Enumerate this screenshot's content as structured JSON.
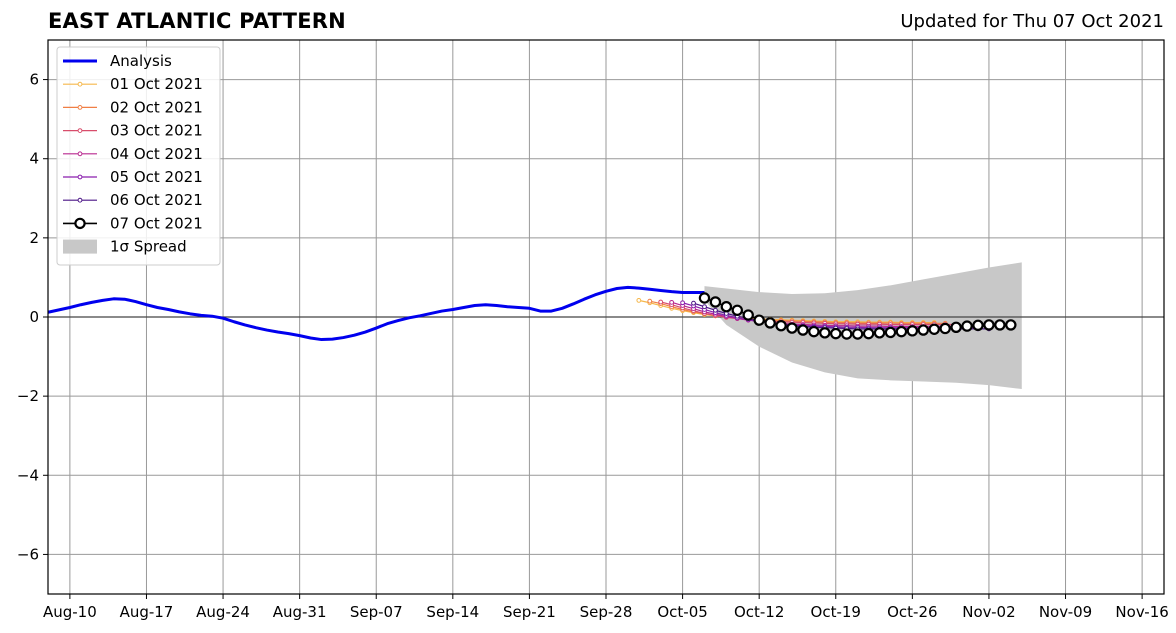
{
  "header": {
    "title": "EAST ATLANTIC PATTERN",
    "updated": "Updated for Thu 07 Oct 2021"
  },
  "colors": {
    "analysis": "#0000ee",
    "spread": "#c8c8c8",
    "grid": "#999999",
    "latest": "#000000"
  },
  "chart_data": {
    "type": "line",
    "title": "EAST ATLANTIC PATTERN",
    "xlabel": "",
    "ylabel": "",
    "ylim": [
      -7,
      7
    ],
    "xlim": [
      "2021-08-08",
      "2021-11-18"
    ],
    "yticks": [
      -6,
      -4,
      -2,
      0,
      2,
      4,
      6
    ],
    "ytick_labels": [
      "−6",
      "−4",
      "−2",
      "0",
      "2",
      "4",
      "6"
    ],
    "xticks": [
      "2021-08-10",
      "2021-08-17",
      "2021-08-24",
      "2021-08-31",
      "2021-09-07",
      "2021-09-14",
      "2021-09-21",
      "2021-09-28",
      "2021-10-05",
      "2021-10-12",
      "2021-10-19",
      "2021-10-26",
      "2021-11-02",
      "2021-11-09",
      "2021-11-16"
    ],
    "xtick_labels": [
      "Aug-10",
      "Aug-17",
      "Aug-24",
      "Aug-31",
      "Sep-07",
      "Sep-14",
      "Sep-21",
      "Sep-28",
      "Oct-05",
      "Oct-12",
      "Oct-19",
      "Oct-26",
      "Nov-02",
      "Nov-09",
      "Nov-16"
    ],
    "grid": true,
    "legend_position": "top-left",
    "analysis": {
      "name": "Analysis",
      "x": [
        "2021-08-08",
        "2021-08-09",
        "2021-08-10",
        "2021-08-11",
        "2021-08-12",
        "2021-08-13",
        "2021-08-14",
        "2021-08-15",
        "2021-08-16",
        "2021-08-17",
        "2021-08-18",
        "2021-08-19",
        "2021-08-20",
        "2021-08-21",
        "2021-08-22",
        "2021-08-23",
        "2021-08-24",
        "2021-08-25",
        "2021-08-26",
        "2021-08-27",
        "2021-08-28",
        "2021-08-29",
        "2021-08-30",
        "2021-08-31",
        "2021-09-01",
        "2021-09-02",
        "2021-09-03",
        "2021-09-04",
        "2021-09-05",
        "2021-09-06",
        "2021-09-07",
        "2021-09-08",
        "2021-09-09",
        "2021-09-10",
        "2021-09-11",
        "2021-09-12",
        "2021-09-13",
        "2021-09-14",
        "2021-09-15",
        "2021-09-16",
        "2021-09-17",
        "2021-09-18",
        "2021-09-19",
        "2021-09-20",
        "2021-09-21",
        "2021-09-22",
        "2021-09-23",
        "2021-09-24",
        "2021-09-25",
        "2021-09-26",
        "2021-09-27",
        "2021-09-28",
        "2021-09-29",
        "2021-09-30",
        "2021-10-01",
        "2021-10-02",
        "2021-10-03",
        "2021-10-04",
        "2021-10-05",
        "2021-10-06",
        "2021-10-07"
      ],
      "y": [
        0.12,
        0.18,
        0.24,
        0.31,
        0.37,
        0.42,
        0.46,
        0.45,
        0.39,
        0.31,
        0.24,
        0.19,
        0.13,
        0.08,
        0.04,
        0.02,
        -0.03,
        -0.12,
        -0.2,
        -0.27,
        -0.33,
        -0.38,
        -0.42,
        -0.47,
        -0.53,
        -0.57,
        -0.56,
        -0.52,
        -0.46,
        -0.38,
        -0.28,
        -0.17,
        -0.09,
        -0.02,
        0.03,
        0.09,
        0.15,
        0.19,
        0.24,
        0.29,
        0.31,
        0.29,
        0.26,
        0.24,
        0.22,
        0.15,
        0.15,
        0.22,
        0.33,
        0.45,
        0.56,
        0.65,
        0.72,
        0.75,
        0.73,
        0.7,
        0.67,
        0.64,
        0.62,
        0.62,
        0.62
      ]
    },
    "spread": {
      "name": "1σ Spread",
      "x": [
        "2021-10-07",
        "2021-10-09",
        "2021-10-12",
        "2021-10-15",
        "2021-10-18",
        "2021-10-21",
        "2021-10-24",
        "2021-10-27",
        "2021-10-30",
        "2021-11-02",
        "2021-11-05"
      ],
      "upper": [
        0.78,
        0.72,
        0.63,
        0.58,
        0.6,
        0.68,
        0.8,
        0.95,
        1.1,
        1.25,
        1.38
      ],
      "lower": [
        0.42,
        -0.2,
        -0.75,
        -1.15,
        -1.4,
        -1.55,
        -1.6,
        -1.63,
        -1.66,
        -1.72,
        -1.82
      ]
    },
    "series": [
      {
        "name": "01 Oct 2021",
        "color": "#f5b74b",
        "start": "2021-10-01",
        "values": [
          0.42,
          0.36,
          0.29,
          0.22,
          0.16,
          0.11,
          0.06,
          0.03,
          0.0,
          -0.02,
          -0.04,
          -0.05,
          -0.06,
          -0.07,
          -0.08,
          -0.09,
          -0.1,
          -0.11,
          -0.12,
          -0.12,
          -0.12,
          -0.13,
          -0.13,
          -0.13,
          -0.14,
          -0.14,
          -0.14,
          -0.14
        ]
      },
      {
        "name": "02 Oct 2021",
        "color": "#f07f45",
        "start": "2021-10-02",
        "values": [
          0.4,
          0.34,
          0.26,
          0.19,
          0.13,
          0.08,
          0.03,
          0.0,
          -0.03,
          -0.05,
          -0.07,
          -0.08,
          -0.09,
          -0.1,
          -0.11,
          -0.12,
          -0.13,
          -0.14,
          -0.14,
          -0.15,
          -0.15,
          -0.15,
          -0.15,
          -0.16,
          -0.16,
          -0.16,
          -0.16,
          -0.16
        ]
      },
      {
        "name": "03 Oct 2021",
        "color": "#d84d6b",
        "start": "2021-10-03",
        "values": [
          0.38,
          0.31,
          0.23,
          0.16,
          0.09,
          0.04,
          -0.01,
          -0.04,
          -0.07,
          -0.09,
          -0.11,
          -0.12,
          -0.13,
          -0.14,
          -0.15,
          -0.16,
          -0.17,
          -0.17,
          -0.18,
          -0.18,
          -0.18,
          -0.19,
          -0.19,
          -0.19,
          -0.19,
          -0.19,
          -0.19,
          -0.19
        ]
      },
      {
        "name": "04 Oct 2021",
        "color": "#b8288f",
        "start": "2021-10-04",
        "values": [
          0.37,
          0.29,
          0.21,
          0.13,
          0.07,
          0.01,
          -0.04,
          -0.08,
          -0.11,
          -0.14,
          -0.16,
          -0.18,
          -0.19,
          -0.2,
          -0.21,
          -0.22,
          -0.22,
          -0.23,
          -0.23,
          -0.23,
          -0.24,
          -0.24,
          -0.24,
          -0.24,
          -0.24,
          -0.24,
          -0.24,
          -0.24
        ]
      },
      {
        "name": "05 Oct 2021",
        "color": "#8a1fae",
        "start": "2021-10-05",
        "values": [
          0.36,
          0.28,
          0.19,
          0.11,
          0.04,
          -0.02,
          -0.07,
          -0.12,
          -0.15,
          -0.18,
          -0.2,
          -0.22,
          -0.23,
          -0.24,
          -0.25,
          -0.26,
          -0.26,
          -0.27,
          -0.27,
          -0.27,
          -0.27,
          -0.27,
          -0.27,
          -0.27,
          -0.27,
          -0.27,
          -0.27,
          -0.27
        ]
      },
      {
        "name": "06 Oct 2021",
        "color": "#4a1486",
        "start": "2021-10-06",
        "values": [
          0.35,
          0.26,
          0.17,
          0.09,
          0.02,
          -0.04,
          -0.1,
          -0.15,
          -0.19,
          -0.22,
          -0.24,
          -0.26,
          -0.27,
          -0.28,
          -0.29,
          -0.3,
          -0.3,
          -0.3,
          -0.3,
          -0.3,
          -0.3,
          -0.3,
          -0.3,
          -0.3,
          -0.3,
          -0.3,
          -0.3,
          -0.3
        ]
      },
      {
        "name": "07 Oct 2021",
        "color": "#000000",
        "start": "2021-10-07",
        "values": [
          0.48,
          0.38,
          0.26,
          0.17,
          0.05,
          -0.08,
          -0.15,
          -0.22,
          -0.28,
          -0.33,
          -0.37,
          -0.4,
          -0.42,
          -0.43,
          -0.43,
          -0.42,
          -0.4,
          -0.39,
          -0.37,
          -0.35,
          -0.33,
          -0.31,
          -0.29,
          -0.26,
          -0.23,
          -0.21,
          -0.2,
          -0.2,
          -0.2
        ]
      }
    ],
    "legend": [
      "Analysis",
      "01 Oct 2021",
      "02 Oct 2021",
      "03 Oct 2021",
      "04 Oct 2021",
      "05 Oct 2021",
      "06 Oct 2021",
      "07 Oct 2021",
      "1σ Spread"
    ]
  }
}
